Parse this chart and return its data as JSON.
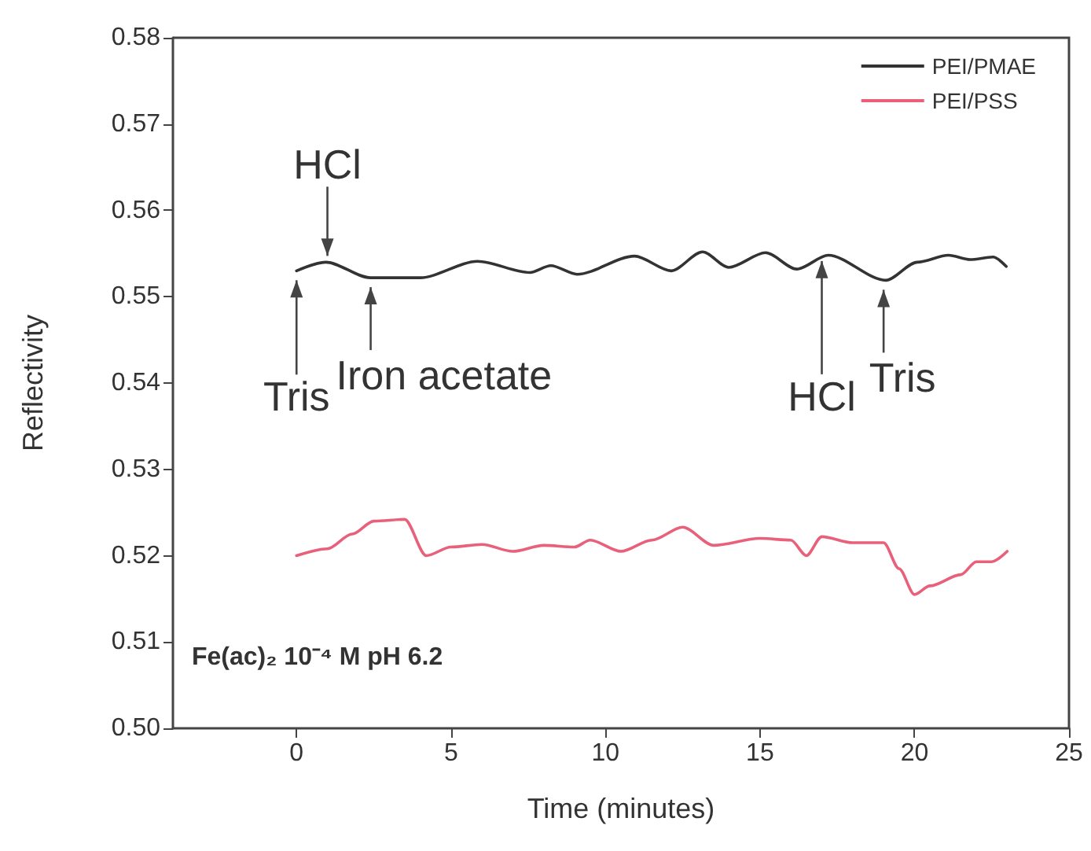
{
  "chart_data": {
    "type": "line",
    "xlabel": "Time (minutes)",
    "ylabel": "Reflectivity",
    "xlim": [
      -4,
      25
    ],
    "xticks": [
      0,
      5,
      10,
      15,
      20,
      25
    ],
    "ylim": [
      0.5,
      0.58
    ],
    "yticks": [
      {
        "value": 0.5,
        "label": "0.50"
      },
      0.51,
      0.52,
      0.53,
      0.54,
      0.55,
      0.56,
      0.57,
      0.58
    ],
    "grid": false,
    "legend": "top right",
    "marker": "none",
    "line_style": "solid",
    "series": [
      {
        "name": "PEI/PMAE",
        "color": "#333333",
        "x": [
          0,
          0.95,
          2.39,
          4.0,
          5.86,
          7.55,
          8.23,
          9.08,
          10.94,
          12.13,
          13.14,
          13.99,
          15.18,
          16.19,
          17.21,
          19.07,
          20.09,
          21.1,
          21.8,
          22.54,
          22.97
        ],
        "values": [
          0.553,
          0.554,
          0.5522,
          0.5522,
          0.5541,
          0.5528,
          0.5536,
          0.5526,
          0.5547,
          0.553,
          0.5552,
          0.5534,
          0.5551,
          0.5532,
          0.5548,
          0.5519,
          0.554,
          0.5548,
          0.5543,
          0.5546,
          0.5535
        ]
      },
      {
        "name": "PEI/PSS",
        "color": "#e8607a",
        "x": [
          0,
          1,
          1.8,
          2.5,
          3.5,
          4.2,
          5,
          6,
          7,
          8,
          9,
          9.5,
          10.5,
          11.5,
          12.5,
          13.5,
          15,
          16,
          16.5,
          17,
          18,
          19,
          19.5,
          20,
          20.5,
          21.5,
          22,
          22.5,
          23
        ],
        "values": [
          0.52,
          0.5208,
          0.5225,
          0.524,
          0.5242,
          0.52,
          0.521,
          0.5213,
          0.5205,
          0.5212,
          0.521,
          0.5218,
          0.5205,
          0.5218,
          0.5233,
          0.5212,
          0.522,
          0.5218,
          0.52,
          0.5222,
          0.5215,
          0.5215,
          0.5185,
          0.5155,
          0.5165,
          0.5178,
          0.5193,
          0.5193,
          0.5205
        ]
      }
    ],
    "annotations": [
      {
        "text": "Tris",
        "x": 0,
        "y": 0.553
      },
      {
        "text": "HCl",
        "x": 1,
        "y": 0.554
      },
      {
        "text": "Iron acetate",
        "x": 2.4,
        "y": 0.5522
      },
      {
        "text": "HCl",
        "x": 17,
        "y": 0.5545
      },
      {
        "text": "Tris",
        "x": 19,
        "y": 0.5519
      },
      "Fe(ac)₂ 10⁻⁴ M pH 6.2"
    ]
  }
}
